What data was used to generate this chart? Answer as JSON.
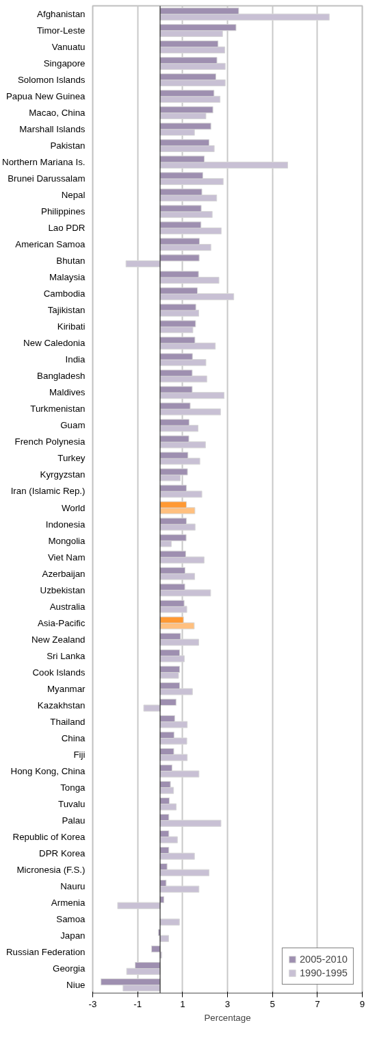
{
  "chart_data": {
    "type": "bar",
    "orientation": "horizontal",
    "xlabel": "Percentage",
    "categories": [
      "Afghanistan",
      "Timor-Leste",
      "Vanuatu",
      "Singapore",
      "Solomon Islands",
      "Papua New Guinea",
      "Macao, China",
      "Marshall Islands",
      "Pakistan",
      "Northern Mariana Is.",
      "Brunei Darussalam",
      "Nepal",
      "Philippines",
      "Lao PDR",
      "American Samoa",
      "Bhutan",
      "Malaysia",
      "Cambodia",
      "Tajikistan",
      "Kiribati",
      "New Caledonia",
      "India",
      "Bangladesh",
      "Maldives",
      "Turkmenistan",
      "Guam",
      "French Polynesia",
      "Turkey",
      "Kyrgyzstan",
      "Iran (Islamic Rep.)",
      "World",
      "Indonesia",
      "Mongolia",
      "Viet Nam",
      "Azerbaijan",
      "Uzbekistan",
      "Australia",
      "Asia-Pacific",
      "New Zealand",
      "Sri Lanka",
      "Cook Islands",
      "Myanmar",
      "Kazakhstan",
      "Thailand",
      "China",
      "Fiji",
      "Hong Kong, China",
      "Tonga",
      "Tuvalu",
      "Palau",
      "Republic of Korea",
      "DPR Korea",
      "Micronesia (F.S.)",
      "Nauru",
      "Armenia",
      "Samoa",
      "Japan",
      "Russian Federation",
      "Georgia",
      "Niue"
    ],
    "series": [
      {
        "name": "2005-2010",
        "colors": [
          "#9e8fb0",
          "#9e8fb0",
          "#9e8fb0",
          "#9e8fb0",
          "#9e8fb0",
          "#9e8fb0",
          "#9e8fb0",
          "#9e8fb0",
          "#9e8fb0",
          "#9e8fb0",
          "#9e8fb0",
          "#9e8fb0",
          "#9e8fb0",
          "#9e8fb0",
          "#9e8fb0",
          "#9e8fb0",
          "#9e8fb0",
          "#9e8fb0",
          "#9e8fb0",
          "#9e8fb0",
          "#9e8fb0",
          "#9e8fb0",
          "#9e8fb0",
          "#9e8fb0",
          "#9e8fb0",
          "#9e8fb0",
          "#9e8fb0",
          "#9e8fb0",
          "#9e8fb0",
          "#9e8fb0",
          "#ff9933",
          "#9e8fb0",
          "#9e8fb0",
          "#9e8fb0",
          "#9e8fb0",
          "#9e8fb0",
          "#9e8fb0",
          "#ff9933",
          "#9e8fb0",
          "#9e8fb0",
          "#9e8fb0",
          "#9e8fb0",
          "#9e8fb0",
          "#9e8fb0",
          "#9e8fb0",
          "#9e8fb0",
          "#9e8fb0",
          "#9e8fb0",
          "#9e8fb0",
          "#9e8fb0",
          "#9e8fb0",
          "#9e8fb0",
          "#9e8fb0",
          "#9e8fb0",
          "#9e8fb0",
          "#9e8fb0",
          "#9e8fb0",
          "#9e8fb0",
          "#9e8fb0",
          "#9e8fb0"
        ],
        "values": [
          3.5,
          3.38,
          2.58,
          2.53,
          2.48,
          2.4,
          2.35,
          2.26,
          2.18,
          1.97,
          1.9,
          1.86,
          1.83,
          1.82,
          1.75,
          1.74,
          1.71,
          1.66,
          1.59,
          1.58,
          1.55,
          1.44,
          1.43,
          1.43,
          1.34,
          1.29,
          1.28,
          1.24,
          1.22,
          1.17,
          1.17,
          1.17,
          1.16,
          1.14,
          1.11,
          1.1,
          1.07,
          1.04,
          0.91,
          0.87,
          0.87,
          0.87,
          0.71,
          0.65,
          0.62,
          0.61,
          0.53,
          0.46,
          0.41,
          0.39,
          0.39,
          0.39,
          0.31,
          0.27,
          0.17,
          null,
          -0.08,
          -0.38,
          -1.11,
          -2.63
        ]
      },
      {
        "name": "1990-1995",
        "colors": [
          "#c8c0d4",
          "#c8c0d4",
          "#c8c0d4",
          "#c8c0d4",
          "#c8c0d4",
          "#c8c0d4",
          "#c8c0d4",
          "#c8c0d4",
          "#c8c0d4",
          "#c8c0d4",
          "#c8c0d4",
          "#c8c0d4",
          "#c8c0d4",
          "#c8c0d4",
          "#c8c0d4",
          "#c8c0d4",
          "#c8c0d4",
          "#c8c0d4",
          "#c8c0d4",
          "#c8c0d4",
          "#c8c0d4",
          "#c8c0d4",
          "#c8c0d4",
          "#c8c0d4",
          "#c8c0d4",
          "#c8c0d4",
          "#c8c0d4",
          "#c8c0d4",
          "#c8c0d4",
          "#c8c0d4",
          "#ffc080",
          "#c8c0d4",
          "#c8c0d4",
          "#c8c0d4",
          "#c8c0d4",
          "#c8c0d4",
          "#c8c0d4",
          "#ffc080",
          "#c8c0d4",
          "#c8c0d4",
          "#c8c0d4",
          "#c8c0d4",
          "#c8c0d4",
          "#c8c0d4",
          "#c8c0d4",
          "#c8c0d4",
          "#c8c0d4",
          "#c8c0d4",
          "#c8c0d4",
          "#c8c0d4",
          "#c8c0d4",
          "#c8c0d4",
          "#c8c0d4",
          "#c8c0d4",
          "#c8c0d4",
          "#c8c0d4",
          "#c8c0d4",
          "#c8c0d4",
          "#c8c0d4",
          "#c8c0d4"
        ],
        "values": [
          7.53,
          2.78,
          2.88,
          2.9,
          2.9,
          2.67,
          2.04,
          1.53,
          2.41,
          5.68,
          2.81,
          2.52,
          2.32,
          2.72,
          2.26,
          -1.52,
          2.62,
          3.28,
          1.72,
          1.46,
          2.46,
          2.04,
          2.08,
          2.85,
          2.69,
          1.69,
          2.02,
          1.77,
          0.9,
          1.86,
          1.55,
          1.56,
          0.5,
          1.96,
          1.54,
          2.25,
          1.19,
          1.52,
          1.72,
          1.08,
          0.82,
          1.44,
          -0.73,
          1.21,
          1.19,
          1.21,
          1.73,
          0.6,
          0.72,
          2.71,
          0.77,
          1.53,
          2.18,
          1.73,
          -1.89,
          0.86,
          0.38,
          0.07,
          -1.49,
          -1.65
        ]
      }
    ],
    "xlim": [
      -3,
      9
    ],
    "xticks": [
      -3,
      -1,
      1,
      3,
      5,
      7,
      9
    ],
    "grid": "x",
    "legend": "bottom right"
  }
}
